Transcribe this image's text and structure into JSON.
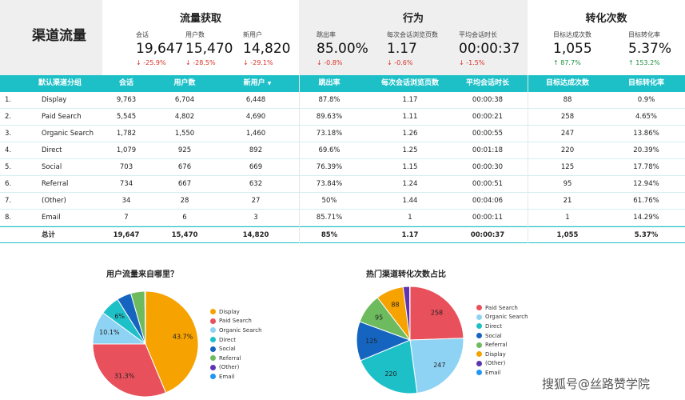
{
  "page_title": "渠道流量",
  "kpi_groups": {
    "acquisition": {
      "title": "流量获取",
      "items": [
        {
          "label": "会话",
          "value": "19,647",
          "change": "-25.9%",
          "dir": "down"
        },
        {
          "label": "用户数",
          "value": "15,470",
          "change": "-28.5%",
          "dir": "down"
        },
        {
          "label": "新用户",
          "value": "14,820",
          "change": "-29.1%",
          "dir": "down"
        }
      ]
    },
    "behavior": {
      "title": "行为",
      "items": [
        {
          "label": "跳出率",
          "value": "85.00%",
          "change": "-0.8%",
          "dir": "down"
        },
        {
          "label": "每次会话浏览页数",
          "value": "1.17",
          "change": "-0.6%",
          "dir": "down"
        },
        {
          "label": "平均会话时长",
          "value": "00:00:37",
          "change": "-1.5%",
          "dir": "down"
        }
      ]
    },
    "conversion": {
      "title": "转化次数",
      "items": [
        {
          "label": "目标达成次数",
          "value": "1,055",
          "change": "87.7%",
          "dir": "up"
        },
        {
          "label": "目标转化率",
          "value": "5.37%",
          "change": "153.2%",
          "dir": "up"
        }
      ]
    }
  },
  "table": {
    "headers": [
      "默认渠道分组",
      "会话",
      "用户数",
      "新用户",
      "跳出率",
      "每次会话浏览页数",
      "平均会话时长",
      "目标达成次数",
      "目标转化率"
    ],
    "sort_indicator": "▼",
    "rows": [
      [
        "1.",
        "Display",
        "9,763",
        "6,704",
        "6,448",
        "87.8%",
        "1.17",
        "00:00:38",
        "88",
        "0.9%"
      ],
      [
        "2.",
        "Paid Search",
        "5,545",
        "4,802",
        "4,690",
        "89.63%",
        "1.11",
        "00:00:21",
        "258",
        "4.65%"
      ],
      [
        "3.",
        "Organic Search",
        "1,782",
        "1,550",
        "1,460",
        "73.18%",
        "1.26",
        "00:00:55",
        "247",
        "13.86%"
      ],
      [
        "4.",
        "Direct",
        "1,079",
        "925",
        "892",
        "69.6%",
        "1.25",
        "00:01:18",
        "220",
        "20.39%"
      ],
      [
        "5.",
        "Social",
        "703",
        "676",
        "669",
        "76.39%",
        "1.15",
        "00:00:30",
        "125",
        "17.78%"
      ],
      [
        "6.",
        "Referral",
        "734",
        "667",
        "632",
        "73.84%",
        "1.24",
        "00:00:51",
        "95",
        "12.94%"
      ],
      [
        "7.",
        "(Other)",
        "34",
        "28",
        "27",
        "50%",
        "1.44",
        "00:04:06",
        "21",
        "61.76%"
      ],
      [
        "8.",
        "Email",
        "7",
        "6",
        "3",
        "85.71%",
        "1",
        "00:00:11",
        "1",
        "14.29%"
      ]
    ],
    "total": [
      "",
      "总计",
      "19,647",
      "15,470",
      "14,820",
      "85%",
      "1.17",
      "00:00:37",
      "1,055",
      "5.37%"
    ]
  },
  "colors": {
    "accent": "#1ec0c8",
    "down": "#d93025",
    "up": "#1e8e3e",
    "panel_gray": "#efefef"
  },
  "chart_data": [
    {
      "type": "pie",
      "title": "用户流量来自哪里？",
      "labels": [
        "Display",
        "Paid Search",
        "Organic Search",
        "Direct",
        "Social",
        "Referral",
        "(Other)",
        "Email"
      ],
      "values": [
        43.7,
        31.3,
        10.1,
        6.0,
        4.4,
        4.3,
        0.2,
        0.0
      ],
      "data_labels": [
        "43.7%",
        "31.3%",
        "10.1%",
        "6%",
        "",
        "",
        "",
        ""
      ],
      "colors": [
        "#f6a200",
        "#e8505b",
        "#8fd3f4",
        "#1ec0c8",
        "#1565c0",
        "#6dbb5e",
        "#5e35b1",
        "#2196f3"
      ],
      "legend_position": "right"
    },
    {
      "type": "pie",
      "title": "热门渠道转化次数占比",
      "labels": [
        "Paid Search",
        "Organic Search",
        "Direct",
        "Social",
        "Referral",
        "Display",
        "(Other)",
        "Email"
      ],
      "values": [
        258,
        247,
        220,
        125,
        95,
        88,
        21,
        1
      ],
      "data_labels": [
        "258",
        "247",
        "220",
        "125",
        "95",
        "88",
        "",
        ""
      ],
      "colors": [
        "#e8505b",
        "#8fd3f4",
        "#1ec0c8",
        "#1565c0",
        "#6dbb5e",
        "#f6a200",
        "#5e35b1",
        "#2196f3"
      ],
      "legend_position": "right"
    }
  ],
  "watermark": "搜狐号@丝路赞学院"
}
